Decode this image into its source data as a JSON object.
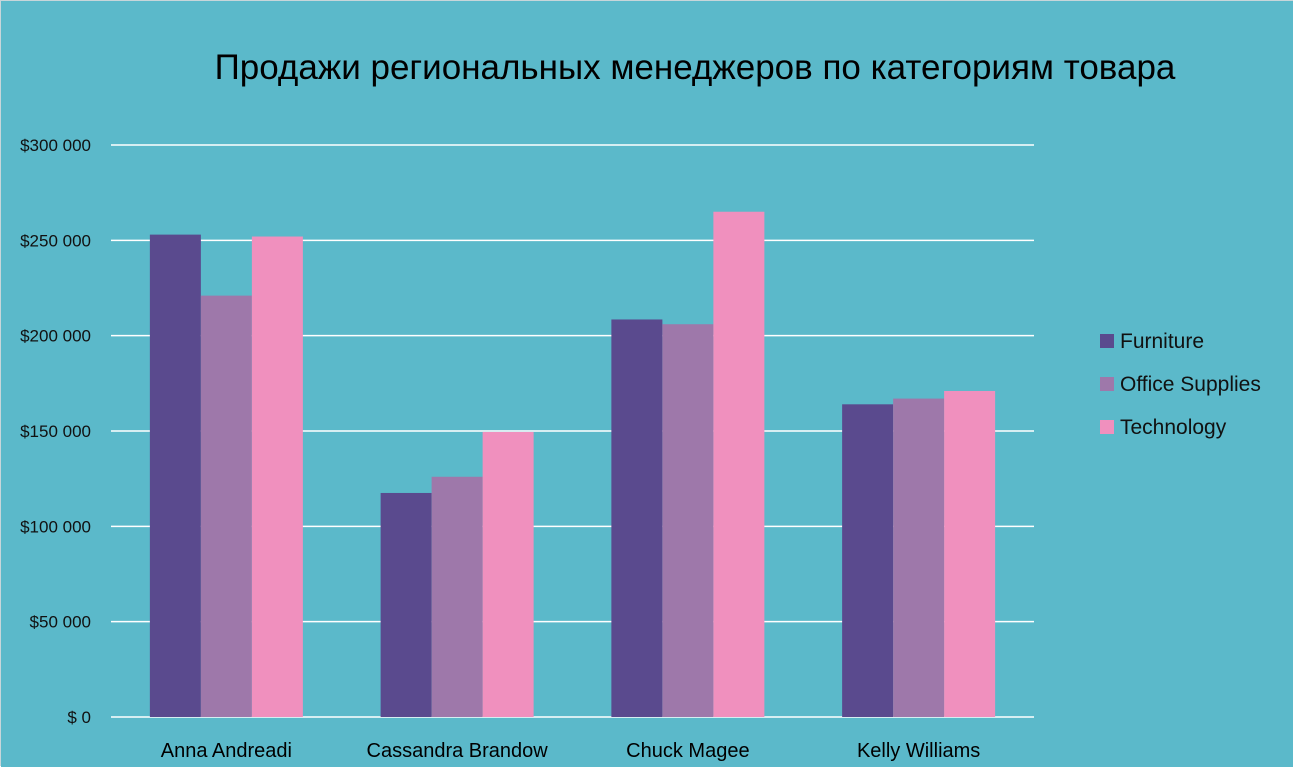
{
  "chart_data": {
    "type": "bar",
    "title": "Продажи региональных менеджеров по категориям товара",
    "categories": [
      "Anna Andreadi",
      "Cassandra Brandow",
      "Chuck Magee",
      "Kelly Williams"
    ],
    "series": [
      {
        "name": "Furniture",
        "color": "#5a4a8e",
        "values": [
          253000,
          117500,
          208500,
          164000
        ]
      },
      {
        "name": "Office Supplies",
        "color": "#9e78aa",
        "values": [
          221000,
          126000,
          206000,
          167000
        ]
      },
      {
        "name": "Technology",
        "color": "#f090be",
        "values": [
          252000,
          149500,
          265000,
          171000
        ]
      }
    ],
    "ylim": [
      0,
      300000
    ],
    "y_ticks": [
      0,
      50000,
      100000,
      150000,
      200000,
      250000,
      300000
    ],
    "y_tick_labels": [
      "$ 0",
      "$50 000",
      "$100 000",
      "$150 000",
      "$200 000",
      "$250 000",
      "$300 000"
    ],
    "xlabel": "",
    "ylabel": "",
    "grid": true,
    "legend_position": "right",
    "background_color": "#5bb9ca",
    "gridline_color": "#ffffff"
  }
}
